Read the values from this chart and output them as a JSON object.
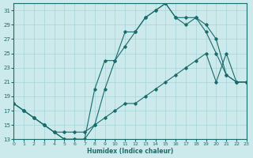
{
  "bg_color": "#cce9ec",
  "grid_color": "#a8d4d8",
  "line_color": "#1a6b6b",
  "xlim": [
    0,
    23
  ],
  "ylim": [
    13,
    32
  ],
  "xticks": [
    0,
    1,
    2,
    3,
    4,
    5,
    6,
    7,
    8,
    9,
    10,
    11,
    12,
    13,
    14,
    15,
    16,
    17,
    18,
    19,
    20,
    21,
    22,
    23
  ],
  "yticks": [
    13,
    15,
    17,
    19,
    21,
    23,
    25,
    27,
    29,
    31
  ],
  "xlabel": "Humidex (Indice chaleur)",
  "line1_x": [
    0,
    1,
    2,
    3,
    4,
    5,
    6,
    7,
    8,
    9,
    10,
    11,
    12,
    13,
    14,
    15,
    16,
    17,
    18,
    19,
    20,
    21,
    22,
    23
  ],
  "line1_y": [
    18,
    17,
    16,
    15,
    14,
    13,
    13,
    13,
    15,
    20,
    24,
    28,
    28,
    30,
    31,
    32,
    30,
    29,
    30,
    29,
    27,
    22,
    21,
    21
  ],
  "line2_x": [
    0,
    1,
    2,
    3,
    4,
    5,
    6,
    7,
    8,
    9,
    10,
    11,
    12,
    13,
    14,
    15,
    16,
    17,
    18,
    19,
    20,
    21,
    22,
    23
  ],
  "line2_y": [
    18,
    17,
    16,
    15,
    14,
    13,
    13,
    13,
    20,
    24,
    24,
    26,
    28,
    30,
    31,
    32,
    30,
    30,
    30,
    28,
    25,
    22,
    21,
    21
  ],
  "line3_x": [
    0,
    1,
    2,
    3,
    4,
    5,
    6,
    7,
    8,
    9,
    10,
    11,
    12,
    13,
    14,
    15,
    16,
    17,
    18,
    19,
    20,
    21,
    22,
    23
  ],
  "line3_y": [
    18,
    17,
    16,
    15,
    14,
    14,
    14,
    14,
    15,
    16,
    17,
    18,
    18,
    19,
    20,
    21,
    22,
    23,
    24,
    25,
    21,
    25,
    21,
    21
  ]
}
